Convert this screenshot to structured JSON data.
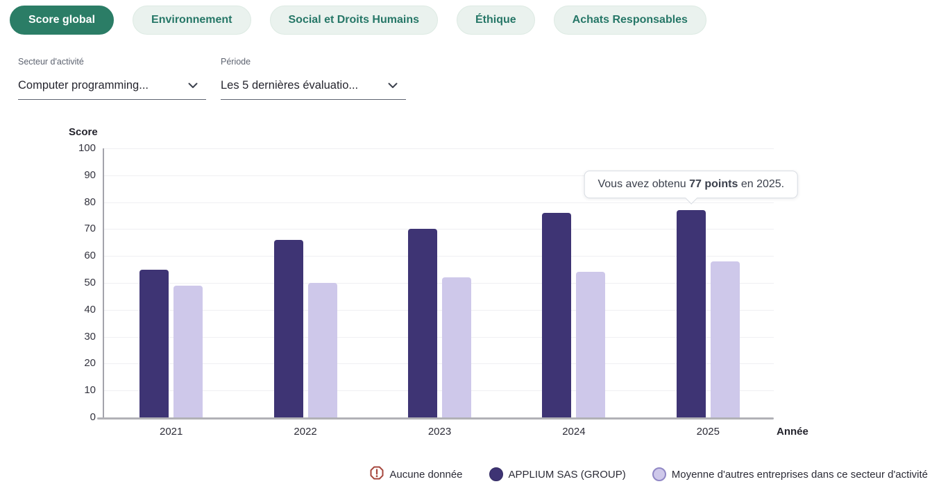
{
  "tabs": [
    {
      "label": "Score global",
      "active": true
    },
    {
      "label": "Environnement",
      "active": false
    },
    {
      "label": "Social et Droits Humains",
      "active": false
    },
    {
      "label": "Éthique",
      "active": false
    },
    {
      "label": "Achats Responsables",
      "active": false
    }
  ],
  "filters": {
    "sector": {
      "label": "Secteur d'activité",
      "value": "Computer programming..."
    },
    "period": {
      "label": "Période",
      "value": "Les 5 dernières évaluatio..."
    }
  },
  "tooltip": {
    "prefix": "Vous avez obtenu ",
    "bold": "77 points",
    "suffix": " en 2025.",
    "anchor_category": "2025",
    "anchor_series": 0
  },
  "chart_data": {
    "type": "bar",
    "title": "",
    "categories": [
      "2021",
      "2022",
      "2023",
      "2024",
      "2025"
    ],
    "series": [
      {
        "name": "APPLIUM SAS (GROUP)",
        "color": "#3e3474",
        "values": [
          55,
          66,
          70,
          76,
          77
        ]
      },
      {
        "name": "Moyenne d'autres entreprises dans ce secteur d'activité",
        "color": "#cec8ea",
        "values": [
          49,
          50,
          52,
          54,
          58
        ]
      }
    ],
    "xlabel": "Année",
    "ylabel": "Score",
    "ylim": [
      0,
      100
    ],
    "ytick_step": 10,
    "grid": true,
    "legend_position": "bottom"
  },
  "legend": {
    "no_data_label": "Aucune donnée"
  },
  "colors": {
    "active_tab_bg": "#2b7d66",
    "active_tab_text": "#ffffff",
    "inactive_tab_bg": "#eaf2ee",
    "inactive_tab_text": "#267767",
    "bar_primary": "#3e3474",
    "bar_secondary": "#cec8ea",
    "no_data_icon": "#a5463c",
    "gridline": "#efeff2",
    "axis": "#a3a3ab"
  }
}
